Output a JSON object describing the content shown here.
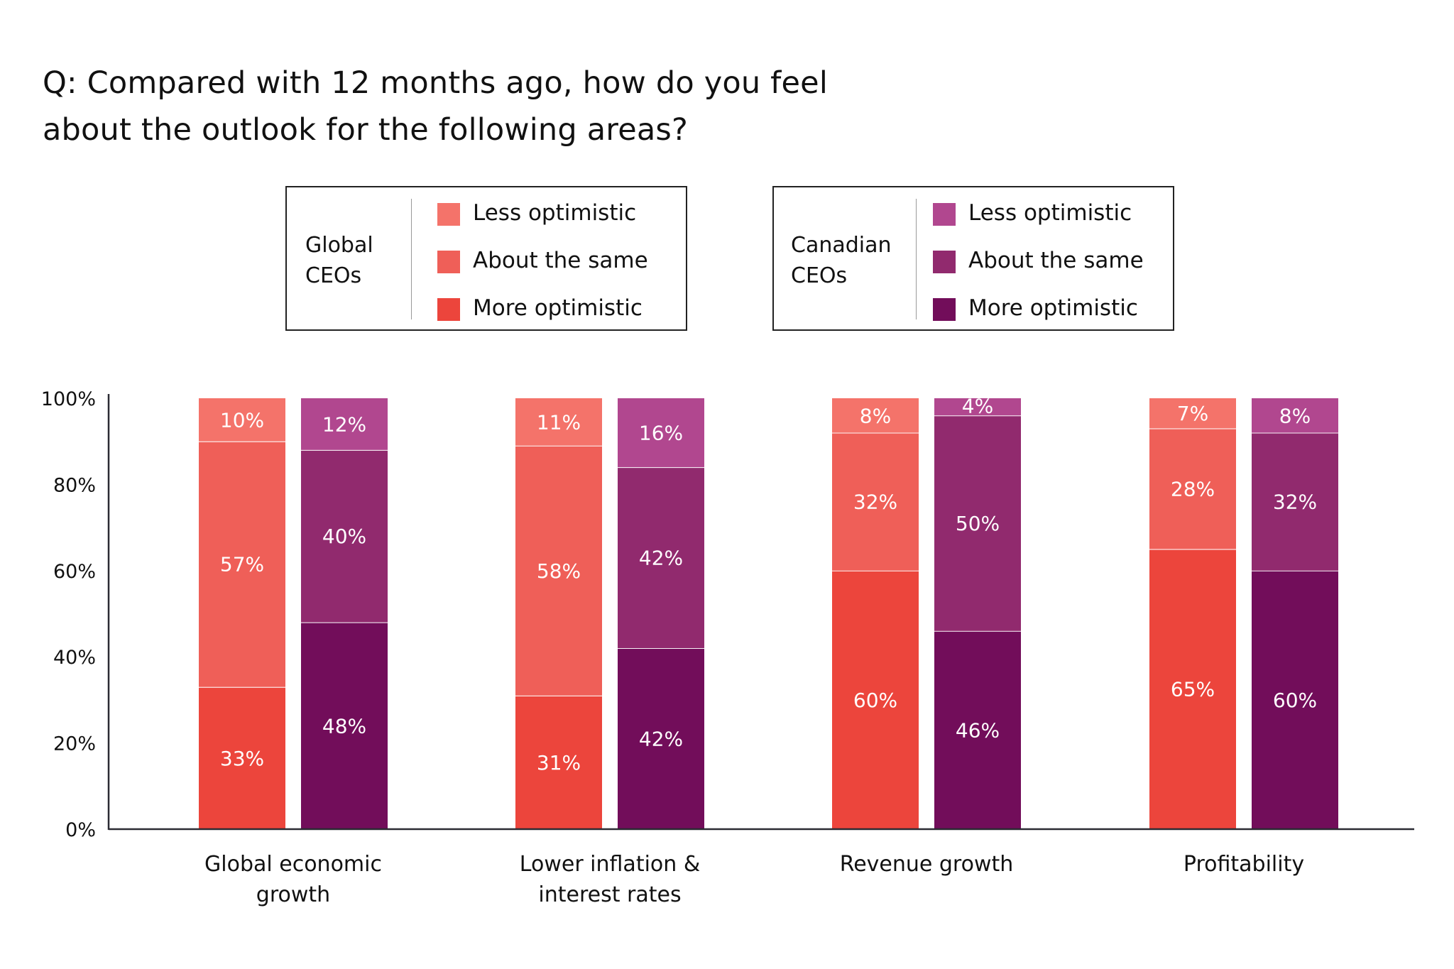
{
  "title_lines": [
    "Q: Compared with 12 months ago, how do you feel",
    "about the outlook for the following areas?"
  ],
  "legends": [
    {
      "group": [
        "Global",
        "CEOs"
      ],
      "items": [
        {
          "label": "Less optimistic",
          "color": "#F4736A"
        },
        {
          "label": "About the same",
          "color": "#EF5F58"
        },
        {
          "label": "More optimistic",
          "color": "#EC453C"
        }
      ]
    },
    {
      "group": [
        "Canadian",
        "CEOs"
      ],
      "items": [
        {
          "label": "Less optimistic",
          "color": "#B1478F"
        },
        {
          "label": "About the same",
          "color": "#912A6E"
        },
        {
          "label": "More optimistic",
          "color": "#720D5A"
        }
      ]
    }
  ],
  "chart_data": {
    "type": "bar",
    "stacked": true,
    "title": "Q: Compared with 12 months ago, how do you feel about the outlook for the following areas?",
    "xlabel": "",
    "ylabel": "",
    "ylim": [
      0,
      100
    ],
    "yticks": [
      0,
      20,
      40,
      60,
      80,
      100
    ],
    "ytick_labels": [
      "0%",
      "20%",
      "40%",
      "60%",
      "80%",
      "100%"
    ],
    "grid": false,
    "legend_position": "top",
    "categories": [
      [
        "Global economic",
        "growth"
      ],
      [
        "Lower inflation &",
        "interest rates"
      ],
      [
        "Revenue growth"
      ],
      [
        "Profitability"
      ]
    ],
    "groups": [
      {
        "name": "Global CEOs",
        "series": [
          {
            "name": "More optimistic",
            "color": "#EC453C",
            "values": [
              33,
              31,
              60,
              65
            ]
          },
          {
            "name": "About the same",
            "color": "#EF5F58",
            "values": [
              57,
              58,
              32,
              28
            ]
          },
          {
            "name": "Less optimistic",
            "color": "#F4736A",
            "values": [
              10,
              11,
              8,
              7
            ]
          }
        ]
      },
      {
        "name": "Canadian CEOs",
        "series": [
          {
            "name": "More optimistic",
            "color": "#720D5A",
            "values": [
              48,
              42,
              46,
              60
            ]
          },
          {
            "name": "About the same",
            "color": "#912A6E",
            "values": [
              40,
              42,
              50,
              32
            ]
          },
          {
            "name": "Less optimistic",
            "color": "#B1478F",
            "values": [
              12,
              16,
              4,
              8
            ]
          }
        ]
      }
    ]
  }
}
